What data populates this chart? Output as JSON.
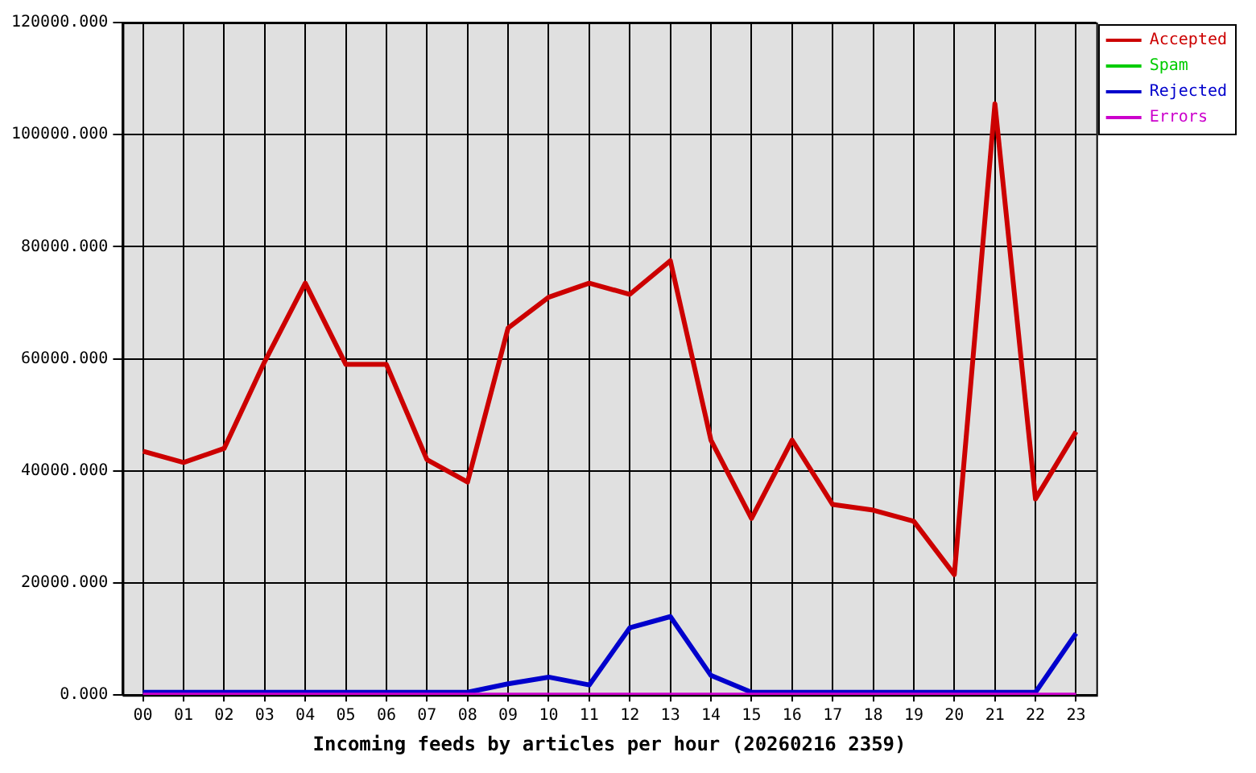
{
  "chart_data": {
    "type": "line",
    "xlabel": "Incoming feeds by articles per hour (20260216 2359)",
    "categories": [
      "00",
      "01",
      "02",
      "03",
      "04",
      "05",
      "06",
      "07",
      "08",
      "09",
      "10",
      "11",
      "12",
      "13",
      "14",
      "15",
      "16",
      "17",
      "18",
      "19",
      "20",
      "21",
      "22",
      "23"
    ],
    "series": [
      {
        "name": "Accepted",
        "color": "#cc0000",
        "values": [
          43500,
          41500,
          44000,
          59500,
          73500,
          59000,
          59000,
          42000,
          38000,
          65500,
          71000,
          73500,
          71500,
          77500,
          45500,
          31500,
          45500,
          34000,
          33000,
          31000,
          21500,
          105500,
          35000,
          47000
        ]
      },
      {
        "name": "Spam",
        "color": "#00cc00",
        "values": [
          null,
          null,
          null,
          null,
          null,
          null,
          null,
          null,
          null,
          null,
          null,
          null,
          null,
          null,
          null,
          null,
          null,
          null,
          null,
          null,
          null,
          null,
          null,
          null
        ]
      },
      {
        "name": "Rejected",
        "color": "#0000cc",
        "values": [
          500,
          500,
          500,
          500,
          500,
          500,
          500,
          500,
          500,
          2000,
          3200,
          1800,
          12000,
          14000,
          3500,
          500,
          500,
          500,
          500,
          500,
          500,
          500,
          500,
          11000
        ]
      },
      {
        "name": "Errors",
        "color": "#cc00cc",
        "values": [
          0,
          0,
          0,
          0,
          0,
          0,
          0,
          0,
          0,
          0,
          0,
          0,
          0,
          0,
          0,
          0,
          0,
          0,
          0,
          0,
          0,
          0,
          0,
          0
        ]
      }
    ],
    "ylim": [
      0,
      120000
    ],
    "yticks": [
      {
        "value": 0,
        "label": "0.000"
      },
      {
        "value": 20000,
        "label": "20000.000"
      },
      {
        "value": 40000,
        "label": "40000.000"
      },
      {
        "value": 60000,
        "label": "60000.000"
      },
      {
        "value": 80000,
        "label": "80000.000"
      },
      {
        "value": 100000,
        "label": "100000.000"
      },
      {
        "value": 120000,
        "label": "120000.000"
      }
    ],
    "grid": true,
    "legend": "top right",
    "marker": "none",
    "line_style": "solid"
  }
}
